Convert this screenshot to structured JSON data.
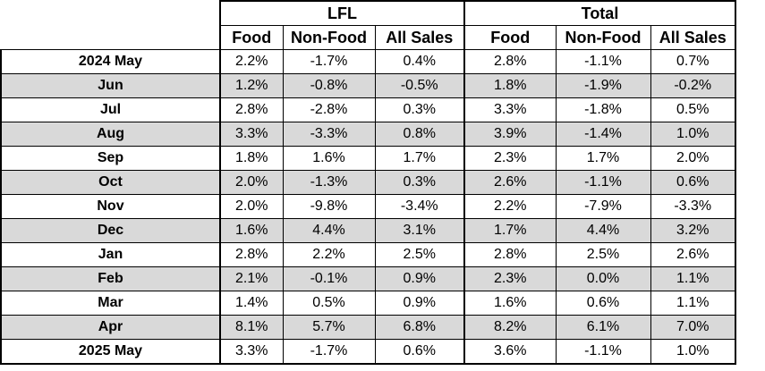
{
  "header": {
    "groups": [
      "LFL",
      "Total"
    ],
    "columns": [
      "Food",
      "Non-Food",
      "All Sales",
      "Food",
      "Non-Food",
      "All Sales"
    ]
  },
  "rows": [
    {
      "label": "2024 May",
      "values": [
        "2.2%",
        "-1.7%",
        "0.4%",
        "2.8%",
        "-1.1%",
        "0.7%"
      ]
    },
    {
      "label": "Jun",
      "values": [
        "1.2%",
        "-0.8%",
        "-0.5%",
        "1.8%",
        "-1.9%",
        "-0.2%"
      ]
    },
    {
      "label": "Jul",
      "values": [
        "2.8%",
        "-2.8%",
        "0.3%",
        "3.3%",
        "-1.8%",
        "0.5%"
      ]
    },
    {
      "label": "Aug",
      "values": [
        "3.3%",
        "-3.3%",
        "0.8%",
        "3.9%",
        "-1.4%",
        "1.0%"
      ]
    },
    {
      "label": "Sep",
      "values": [
        "1.8%",
        "1.6%",
        "1.7%",
        "2.3%",
        "1.7%",
        "2.0%"
      ]
    },
    {
      "label": "Oct",
      "values": [
        "2.0%",
        "-1.3%",
        "0.3%",
        "2.6%",
        "-1.1%",
        "0.6%"
      ]
    },
    {
      "label": "Nov",
      "values": [
        "2.0%",
        "-9.8%",
        "-3.4%",
        "2.2%",
        "-7.9%",
        "-3.3%"
      ]
    },
    {
      "label": "Dec",
      "values": [
        "1.6%",
        "4.4%",
        "3.1%",
        "1.7%",
        "4.4%",
        "3.2%"
      ]
    },
    {
      "label": "Jan",
      "values": [
        "2.8%",
        "2.2%",
        "2.5%",
        "2.8%",
        "2.5%",
        "2.6%"
      ]
    },
    {
      "label": "Feb",
      "values": [
        "2.1%",
        "-0.1%",
        "0.9%",
        "2.3%",
        "0.0%",
        "1.1%"
      ]
    },
    {
      "label": "Mar",
      "values": [
        "1.4%",
        "0.5%",
        "0.9%",
        "1.6%",
        "0.6%",
        "1.1%"
      ]
    },
    {
      "label": "Apr",
      "values": [
        "8.1%",
        "5.7%",
        "6.8%",
        "8.2%",
        "6.1%",
        "7.0%"
      ]
    },
    {
      "label": "2025 May",
      "values": [
        "3.3%",
        "-1.7%",
        "0.6%",
        "3.6%",
        "-1.1%",
        "1.0%"
      ]
    }
  ]
}
